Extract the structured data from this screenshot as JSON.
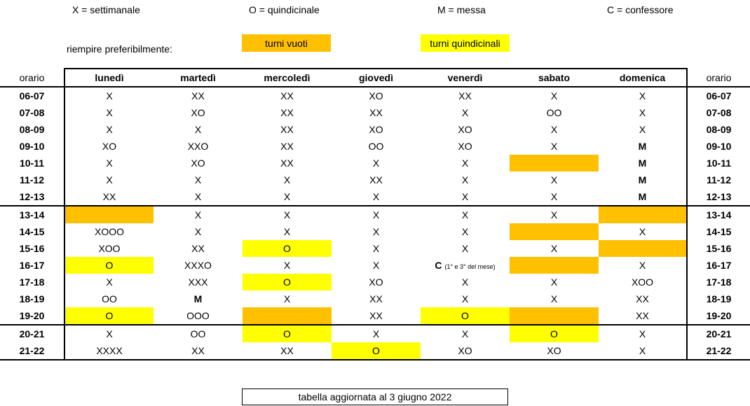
{
  "legend": {
    "x": "X = settimanale",
    "o": "O = quindicinale",
    "m": "M = messa",
    "c": "C = confessore"
  },
  "fill": {
    "label": "riempire preferibilmente:",
    "empty_label": "turni vuoti",
    "biweekly_label": "turni quindicinali",
    "colors": {
      "empty": "#FFC000",
      "biweekly": "#FFFF00"
    }
  },
  "table": {
    "orario_label": "orario",
    "days": [
      "lunedì",
      "martedì",
      "mercoledì",
      "giovedì",
      "venerdì",
      "sabato",
      "domenica"
    ],
    "rows": [
      {
        "time": "06-07",
        "cells": [
          {
            "t": "X"
          },
          {
            "t": "XX"
          },
          {
            "t": "XX"
          },
          {
            "t": "XO"
          },
          {
            "t": "XX"
          },
          {
            "t": "X"
          },
          {
            "t": "X"
          }
        ]
      },
      {
        "time": "07-08",
        "cells": [
          {
            "t": "X"
          },
          {
            "t": "XO"
          },
          {
            "t": "XX"
          },
          {
            "t": "XX"
          },
          {
            "t": "X"
          },
          {
            "t": "OO"
          },
          {
            "t": "X"
          }
        ]
      },
      {
        "time": "08-09",
        "cells": [
          {
            "t": "X"
          },
          {
            "t": "X"
          },
          {
            "t": "XX"
          },
          {
            "t": "XO"
          },
          {
            "t": "XO"
          },
          {
            "t": "X"
          },
          {
            "t": "X"
          }
        ]
      },
      {
        "time": "09-10",
        "cells": [
          {
            "t": "XO"
          },
          {
            "t": "XXO"
          },
          {
            "t": "XX"
          },
          {
            "t": "OO"
          },
          {
            "t": "XO"
          },
          {
            "t": "X"
          },
          {
            "t": "M",
            "b": 1
          }
        ]
      },
      {
        "time": "10-11",
        "cells": [
          {
            "t": "X"
          },
          {
            "t": "XO"
          },
          {
            "t": "XX"
          },
          {
            "t": "X"
          },
          {
            "t": "X"
          },
          {
            "t": "",
            "c": "orange"
          },
          {
            "t": "M",
            "b": 1
          }
        ]
      },
      {
        "time": "11-12",
        "cells": [
          {
            "t": "X"
          },
          {
            "t": "X"
          },
          {
            "t": "X"
          },
          {
            "t": "XX"
          },
          {
            "t": "X"
          },
          {
            "t": "X"
          },
          {
            "t": "M",
            "b": 1
          }
        ]
      },
      {
        "time": "12-13",
        "cells": [
          {
            "t": "XX"
          },
          {
            "t": "X"
          },
          {
            "t": "X"
          },
          {
            "t": "X"
          },
          {
            "t": "X"
          },
          {
            "t": "X"
          },
          {
            "t": "M",
            "b": 1
          }
        ]
      },
      {
        "time": "13-14",
        "sep": 1,
        "cells": [
          {
            "t": "",
            "c": "orange"
          },
          {
            "t": "X"
          },
          {
            "t": "X"
          },
          {
            "t": "X"
          },
          {
            "t": "X"
          },
          {
            "t": "X"
          },
          {
            "t": "",
            "c": "orange"
          }
        ]
      },
      {
        "time": "14-15",
        "cells": [
          {
            "t": "XOOO"
          },
          {
            "t": "X"
          },
          {
            "t": "X"
          },
          {
            "t": "X"
          },
          {
            "t": "X"
          },
          {
            "t": "",
            "c": "orange"
          },
          {
            "t": "X"
          }
        ]
      },
      {
        "time": "15-16",
        "cells": [
          {
            "t": "XOO"
          },
          {
            "t": "XX"
          },
          {
            "t": "O",
            "c": "yellow"
          },
          {
            "t": "X"
          },
          {
            "t": "X"
          },
          {
            "t": "X"
          },
          {
            "t": "",
            "c": "orange"
          }
        ]
      },
      {
        "time": "16-17",
        "cells": [
          {
            "t": "O",
            "c": "yellow"
          },
          {
            "t": "XXXO"
          },
          {
            "t": "X"
          },
          {
            "t": "X"
          },
          {
            "t": "C",
            "b": 1,
            "n": "(1° e 3° del mese)"
          },
          {
            "t": "",
            "c": "orange"
          },
          {
            "t": "X"
          }
        ]
      },
      {
        "time": "17-18",
        "cells": [
          {
            "t": "X"
          },
          {
            "t": "XXX"
          },
          {
            "t": "O",
            "c": "yellow"
          },
          {
            "t": "XO"
          },
          {
            "t": "X"
          },
          {
            "t": "X"
          },
          {
            "t": "XOO"
          }
        ]
      },
      {
        "time": "18-19",
        "cells": [
          {
            "t": "OO"
          },
          {
            "t": "M",
            "b": 1
          },
          {
            "t": "X"
          },
          {
            "t": "XX"
          },
          {
            "t": "X"
          },
          {
            "t": "X"
          },
          {
            "t": "XX"
          }
        ]
      },
      {
        "time": "19-20",
        "cells": [
          {
            "t": "O",
            "c": "yellow"
          },
          {
            "t": "OOO"
          },
          {
            "t": "",
            "c": "orange"
          },
          {
            "t": "XX"
          },
          {
            "t": "O",
            "c": "yellow"
          },
          {
            "t": "",
            "c": "orange"
          },
          {
            "t": "XX"
          }
        ]
      },
      {
        "time": "20-21",
        "sep": 1,
        "cells": [
          {
            "t": "X"
          },
          {
            "t": "OO"
          },
          {
            "t": "O",
            "c": "yellow"
          },
          {
            "t": "X"
          },
          {
            "t": "X"
          },
          {
            "t": "O",
            "c": "yellow"
          },
          {
            "t": "X"
          }
        ]
      },
      {
        "time": "21-22",
        "cells": [
          {
            "t": "XXXX"
          },
          {
            "t": "XX"
          },
          {
            "t": "XX"
          },
          {
            "t": "O",
            "c": "yellow"
          },
          {
            "t": "XO"
          },
          {
            "t": "XO"
          },
          {
            "t": "X"
          }
        ]
      }
    ]
  },
  "footer": "tabella aggiornata al 3 giugno 2022"
}
